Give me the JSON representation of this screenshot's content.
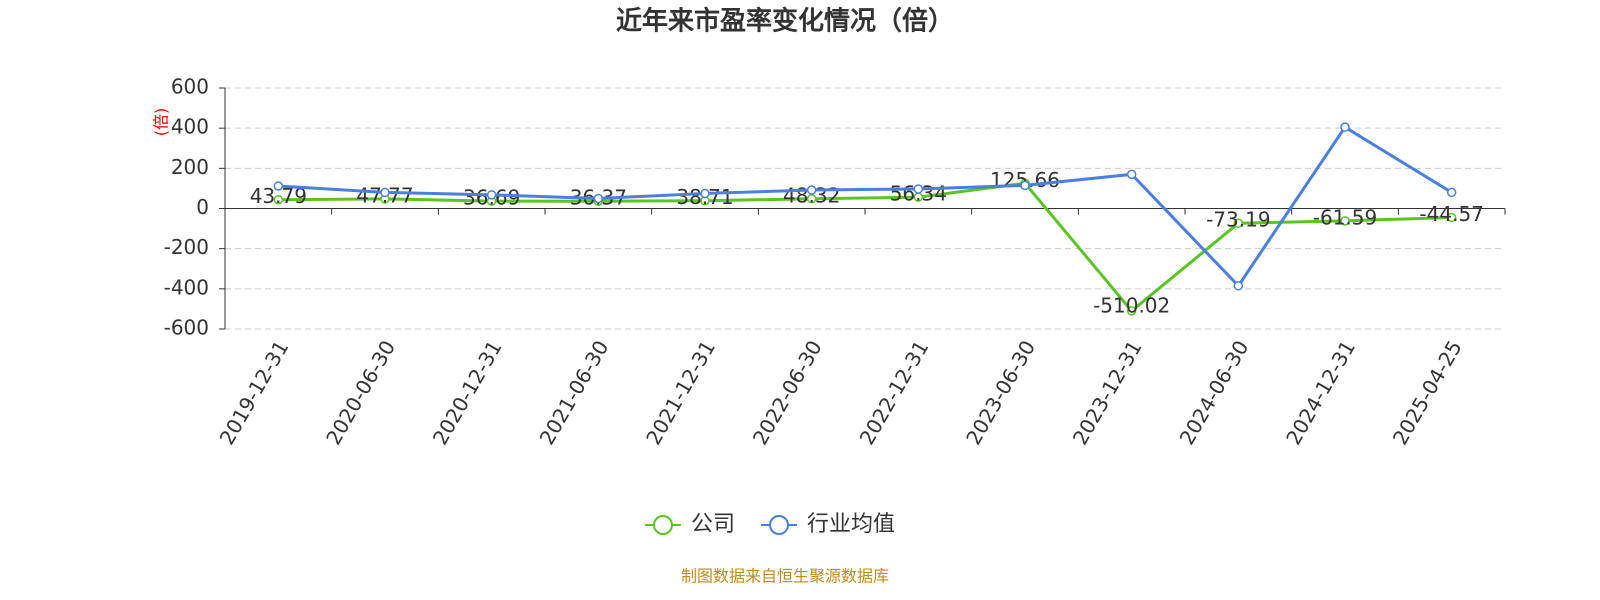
{
  "chart_data": {
    "type": "line",
    "title": "近年来市盈率变化情况（倍）",
    "y_label": "(倍)",
    "source": "制图数据来自恒生聚源数据库",
    "categories": [
      "2019-12-31",
      "2020-06-30",
      "2020-12-31",
      "2021-06-30",
      "2021-12-31",
      "2022-06-30",
      "2022-12-31",
      "2023-06-30",
      "2023-12-31",
      "2024-06-30",
      "2024-12-31",
      "2025-04-25"
    ],
    "series": [
      {
        "name": "公司",
        "color": "#5ac425",
        "values": [
          43.79,
          47.77,
          36.69,
          36.37,
          38.71,
          48.32,
          56.34,
          125.66,
          -510.02,
          -73.19,
          -61.59,
          -44.57
        ],
        "labels": true
      },
      {
        "name": "行业均值",
        "color": "#4a7fdc",
        "values": [
          112,
          80,
          68,
          50,
          75,
          92,
          97,
          115,
          170,
          -385,
          405,
          80
        ],
        "labels": false
      }
    ],
    "ylim": [
      -600,
      600
    ],
    "yticks": [
      -600,
      -400,
      -200,
      0,
      200,
      400,
      600
    ],
    "grid": true
  }
}
